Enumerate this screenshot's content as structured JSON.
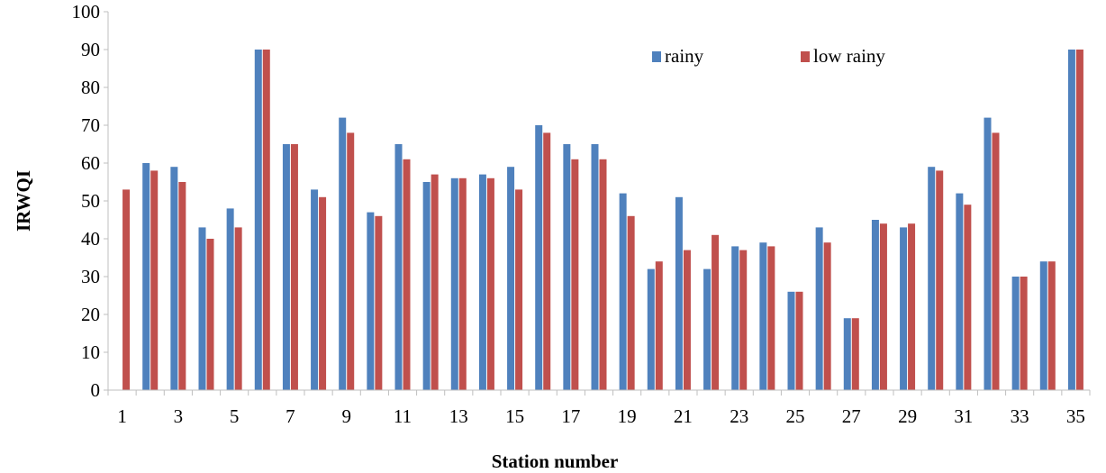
{
  "chart_data": {
    "type": "bar",
    "title": "",
    "xlabel": "Station number",
    "ylabel": "IRWQI",
    "ylim": [
      0,
      100
    ],
    "yticks": [
      "0",
      "10",
      "20",
      "30",
      "40",
      "50",
      "60",
      "70",
      "80",
      "90",
      "100"
    ],
    "categories": [
      "1",
      "2",
      "3",
      "4",
      "5",
      "6",
      "7",
      "8",
      "9",
      "10",
      "11",
      "12",
      "13",
      "14",
      "15",
      "16",
      "17",
      "18",
      "19",
      "20",
      "21",
      "22",
      "23",
      "24",
      "25",
      "26",
      "27",
      "28",
      "29",
      "30",
      "31",
      "32",
      "33",
      "34",
      "35"
    ],
    "xtick_labels": [
      "1",
      "3",
      "5",
      "7",
      "9",
      "11",
      "13",
      "15",
      "17",
      "19",
      "21",
      "23",
      "25",
      "27",
      "29",
      "31",
      "33",
      "35"
    ],
    "grid": false,
    "legend_position": "top-right",
    "series": [
      {
        "name": "rainy",
        "color": "#4f81bd",
        "values": [
          0,
          60,
          59,
          43,
          48,
          90,
          65,
          53,
          72,
          47,
          65,
          55,
          56,
          57,
          59,
          70,
          65,
          65,
          52,
          32,
          51,
          32,
          38,
          39,
          26,
          43,
          19,
          45,
          43,
          59,
          52,
          72,
          30,
          34,
          90
        ]
      },
      {
        "name": "low rainy",
        "color": "#c0504d",
        "values": [
          53,
          58,
          55,
          40,
          43,
          90,
          65,
          51,
          68,
          46,
          61,
          57,
          56,
          56,
          53,
          68,
          61,
          61,
          46,
          34,
          37,
          41,
          37,
          38,
          26,
          39,
          19,
          44,
          44,
          58,
          49,
          68,
          30,
          34,
          90
        ]
      }
    ]
  }
}
